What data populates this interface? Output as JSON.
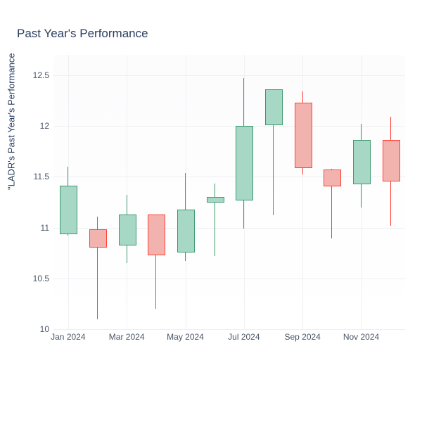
{
  "chart": {
    "type": "candlestick",
    "title": "Past Year's Performance",
    "y_axis_label": "\"LADR's Past Year's Performance",
    "title_color": "#2a3f5f",
    "axis_text_color": "#4a5568",
    "background_color": "#ffffff",
    "plot_bg_color": "#fcfcfd",
    "grid_color": "#eef0f3",
    "up_fill": "#a7d8c5",
    "up_border": "#3d9970",
    "down_fill": "#f2b3ae",
    "down_border": "#ff4136",
    "y_axis": {
      "min": 10.0,
      "max": 12.7,
      "ticks": [
        10,
        10.5,
        11,
        11.5,
        12,
        12.5
      ],
      "tick_labels": [
        "10",
        "10.5",
        "11",
        "11.5",
        "12",
        "12.5"
      ]
    },
    "x_axis": {
      "tick_positions": [
        0,
        2,
        4,
        6,
        8,
        10
      ],
      "tick_labels": [
        "Jan 2024",
        "Mar 2024",
        "May 2024",
        "Jul 2024",
        "Sep 2024",
        "Nov 2024"
      ]
    },
    "candle_width_ratio": 0.55,
    "candles": [
      {
        "i": 0,
        "open": 10.95,
        "close": 11.41,
        "high": 11.6,
        "low": 10.92,
        "dir": "up"
      },
      {
        "i": 1,
        "open": 10.98,
        "close": 10.82,
        "high": 11.11,
        "low": 10.1,
        "dir": "down"
      },
      {
        "i": 2,
        "open": 10.84,
        "close": 11.13,
        "high": 11.32,
        "low": 10.65,
        "dir": "up"
      },
      {
        "i": 3,
        "open": 11.13,
        "close": 10.74,
        "high": 11.13,
        "low": 10.2,
        "dir": "down"
      },
      {
        "i": 4,
        "open": 10.77,
        "close": 11.18,
        "high": 11.54,
        "low": 10.67,
        "dir": "up"
      },
      {
        "i": 5,
        "open": 11.26,
        "close": 11.3,
        "high": 11.43,
        "low": 10.72,
        "dir": "up"
      },
      {
        "i": 6,
        "open": 11.28,
        "close": 12.0,
        "high": 12.47,
        "low": 10.99,
        "dir": "up"
      },
      {
        "i": 7,
        "open": 12.02,
        "close": 12.36,
        "high": 12.36,
        "low": 11.12,
        "dir": "up"
      },
      {
        "i": 8,
        "open": 12.23,
        "close": 11.6,
        "high": 12.34,
        "low": 11.52,
        "dir": "down"
      },
      {
        "i": 9,
        "open": 11.57,
        "close": 11.42,
        "high": 11.58,
        "low": 10.89,
        "dir": "down"
      },
      {
        "i": 10,
        "open": 11.44,
        "close": 11.86,
        "high": 12.02,
        "low": 11.2,
        "dir": "up"
      },
      {
        "i": 11,
        "open": 11.86,
        "close": 11.47,
        "high": 12.09,
        "low": 11.02,
        "dir": "down"
      }
    ]
  }
}
